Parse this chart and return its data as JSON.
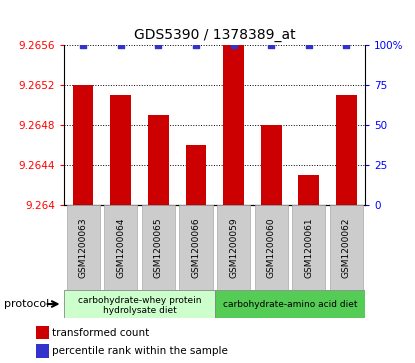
{
  "title": "GDS5390 / 1378389_at",
  "samples": [
    "GSM1200063",
    "GSM1200064",
    "GSM1200065",
    "GSM1200066",
    "GSM1200059",
    "GSM1200060",
    "GSM1200061",
    "GSM1200062"
  ],
  "red_values": [
    9.2652,
    9.2651,
    9.2649,
    9.2646,
    9.2656,
    9.2648,
    9.2643,
    9.2651
  ],
  "blue_values": [
    100,
    100,
    100,
    100,
    100,
    100,
    100,
    100
  ],
  "ylim_left": [
    9.264,
    9.2656
  ],
  "ylim_right": [
    0,
    100
  ],
  "yticks_left": [
    9.264,
    9.2644,
    9.2648,
    9.2652,
    9.2656
  ],
  "yticks_right": [
    0,
    25,
    50,
    75,
    100
  ],
  "ytick_right_labels": [
    "0",
    "25",
    "50",
    "75",
    "100%"
  ],
  "group1_label_line1": "carbohydrate-whey protein",
  "group1_label_line2": "hydrolysate diet",
  "group2_label": "carbohydrate-amino acid diet",
  "group1_count": 4,
  "group2_count": 4,
  "protocol_label": "protocol",
  "legend_red": "transformed count",
  "legend_blue": "percentile rank within the sample",
  "bar_color": "#cc0000",
  "dot_color": "#3333cc",
  "group1_bg": "#ccffcc",
  "group2_bg": "#55cc55",
  "xtick_bg": "#cccccc",
  "baseline": 9.264,
  "fig_width": 4.15,
  "fig_height": 3.63
}
